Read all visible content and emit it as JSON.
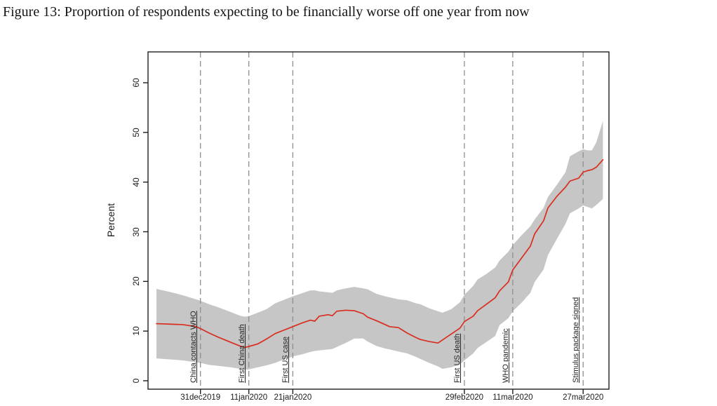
{
  "figure": {
    "caption": "Figure 13: Proportion of respondents expecting to be financially worse off one year from now"
  },
  "chart_data": {
    "type": "line",
    "title": "",
    "xlabel": "",
    "ylabel": "Percent",
    "ylim": [
      0,
      60
    ],
    "y_ticks": [
      0,
      10,
      20,
      30,
      40,
      50,
      60
    ],
    "grid": false,
    "legend": "none",
    "x_unit": "days since 21dec2019",
    "x_range_days": [
      0,
      102
    ],
    "x_ticks": [
      {
        "day": 10,
        "label": "31dec2019"
      },
      {
        "day": 21,
        "label": "11jan2020"
      },
      {
        "day": 31,
        "label": "21jan2020"
      },
      {
        "day": 70,
        "label": "29feb2020"
      },
      {
        "day": 81,
        "label": "11mar2020"
      },
      {
        "day": 97,
        "label": "27mar2020"
      }
    ],
    "events": [
      {
        "day": 10,
        "label": "China contacts WHO"
      },
      {
        "day": 21,
        "label": "First China death"
      },
      {
        "day": 31,
        "label": "First US case"
      },
      {
        "day": 70,
        "label": "First US death"
      },
      {
        "day": 81,
        "label": "WHO pandemic"
      },
      {
        "day": 97,
        "label": "Stimulus package signed"
      }
    ],
    "colors": {
      "line": "#d92d20",
      "band": "#c6c6c6",
      "event_line": "#8f8f8f",
      "axis": "#1f1f1f"
    },
    "x_days": [
      0,
      3,
      6,
      9,
      10,
      12,
      14,
      17,
      19,
      20,
      21,
      23,
      25,
      27,
      29,
      31,
      33,
      35,
      36,
      37,
      39,
      40,
      41,
      43,
      45,
      47,
      48,
      50,
      52,
      53,
      55,
      57,
      59,
      60,
      62,
      64,
      65,
      67,
      69,
      70,
      72,
      73,
      75,
      77,
      78,
      80,
      81,
      83,
      85,
      86,
      88,
      89,
      91,
      93,
      94,
      96,
      97,
      98,
      99,
      100,
      101.5
    ],
    "series": [
      {
        "name": "mean_expecting_worse_off_pct",
        "role": "line",
        "values": [
          11.5,
          11.4,
          11.3,
          10.9,
          10.5,
          9.6,
          8.8,
          7.7,
          7.0,
          6.7,
          6.9,
          7.4,
          8.4,
          9.5,
          10.2,
          10.9,
          11.6,
          12.2,
          12.0,
          13.0,
          13.3,
          13.1,
          14.0,
          14.2,
          14.1,
          13.5,
          12.8,
          12.1,
          11.3,
          10.9,
          10.7,
          9.6,
          8.7,
          8.3,
          7.9,
          7.6,
          8.2,
          9.4,
          10.6,
          11.9,
          13.0,
          14.1,
          15.4,
          16.7,
          18.1,
          19.9,
          22.3,
          24.7,
          27.1,
          29.6,
          32.2,
          34.8,
          37.1,
          39.0,
          40.2,
          40.8,
          42.0,
          42.3,
          42.5,
          43.0,
          44.5
        ]
      },
      {
        "name": "confidence_band_upper_pct",
        "role": "band-upper",
        "values": [
          18.5,
          17.9,
          17.2,
          16.4,
          16.1,
          15.4,
          14.8,
          13.8,
          13.1,
          12.9,
          13.0,
          13.7,
          14.4,
          15.6,
          16.3,
          17.0,
          17.6,
          18.2,
          18.2,
          18.0,
          17.8,
          17.7,
          18.2,
          18.6,
          18.9,
          18.6,
          18.4,
          17.5,
          17.0,
          16.8,
          16.4,
          16.2,
          15.6,
          15.4,
          14.6,
          14.0,
          13.7,
          14.4,
          15.8,
          17.3,
          19.1,
          20.4,
          21.5,
          22.8,
          24.2,
          26.0,
          27.3,
          29.3,
          31.1,
          32.5,
          34.8,
          37.0,
          39.4,
          42.0,
          45.2,
          46.2,
          46.6,
          46.4,
          46.4,
          48.0,
          52.3
        ]
      },
      {
        "name": "confidence_band_lower_pct",
        "role": "band-lower",
        "values": [
          4.5,
          4.3,
          4.1,
          3.7,
          3.6,
          3.2,
          3.0,
          2.7,
          2.4,
          2.2,
          2.3,
          2.7,
          3.1,
          3.6,
          4.3,
          4.9,
          5.3,
          5.8,
          6.0,
          6.1,
          6.3,
          6.4,
          6.8,
          7.6,
          8.5,
          8.5,
          7.9,
          7.0,
          6.5,
          6.3,
          5.9,
          5.5,
          4.8,
          4.4,
          3.6,
          2.9,
          2.4,
          2.7,
          3.3,
          4.1,
          5.5,
          6.6,
          7.8,
          9.0,
          11.2,
          12.6,
          14.0,
          15.7,
          17.7,
          19.9,
          22.4,
          25.3,
          28.5,
          31.6,
          33.7,
          34.7,
          35.3,
          35.0,
          34.7,
          35.4,
          36.6
        ]
      }
    ]
  }
}
